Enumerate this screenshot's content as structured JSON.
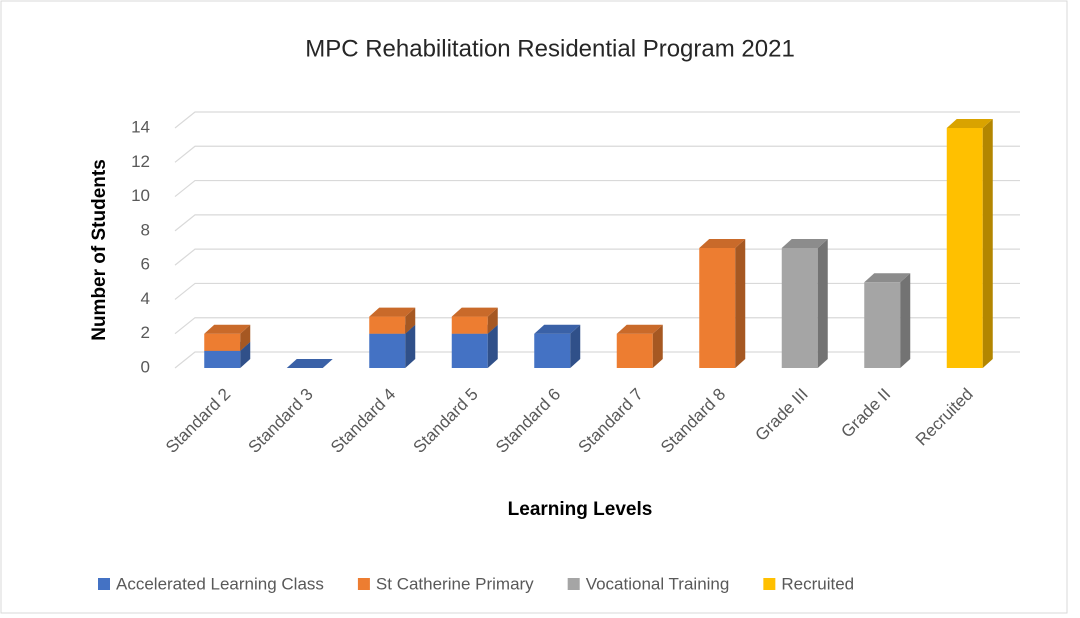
{
  "chart_data": {
    "type": "bar3d_stacked",
    "title": "MPC Rehabilitation Residential Program 2021",
    "x_label": "Learning Levels",
    "y_label": "Number of Students",
    "categories": [
      "Standard 2",
      "Standard 3",
      "Standard 4",
      "Standard 5",
      "Standard 6",
      "Standard 7",
      "Standard 8",
      "Grade III",
      "Grade II",
      "Recruited"
    ],
    "series": [
      {
        "name": "Accelerated Learning Class",
        "color": "#4472c4",
        "values": [
          1,
          0,
          2,
          2,
          2,
          0,
          0,
          0,
          0,
          0
        ]
      },
      {
        "name": "St Catherine Primary",
        "color": "#ed7d31",
        "values": [
          1,
          0,
          1,
          1,
          0,
          2,
          7,
          0,
          0,
          0
        ]
      },
      {
        "name": "Vocational Training",
        "color": "#a5a5a5",
        "values": [
          0,
          0,
          0,
          0,
          0,
          0,
          0,
          7,
          5,
          0
        ]
      },
      {
        "name": "Recruited",
        "color": "#ffc000",
        "values": [
          0,
          0,
          0,
          0,
          0,
          0,
          0,
          0,
          0,
          14
        ]
      }
    ],
    "ylim": [
      0,
      14
    ],
    "yticks": [
      0,
      2,
      4,
      6,
      8,
      10,
      12,
      14
    ],
    "grid": true,
    "legend": "bottom"
  }
}
